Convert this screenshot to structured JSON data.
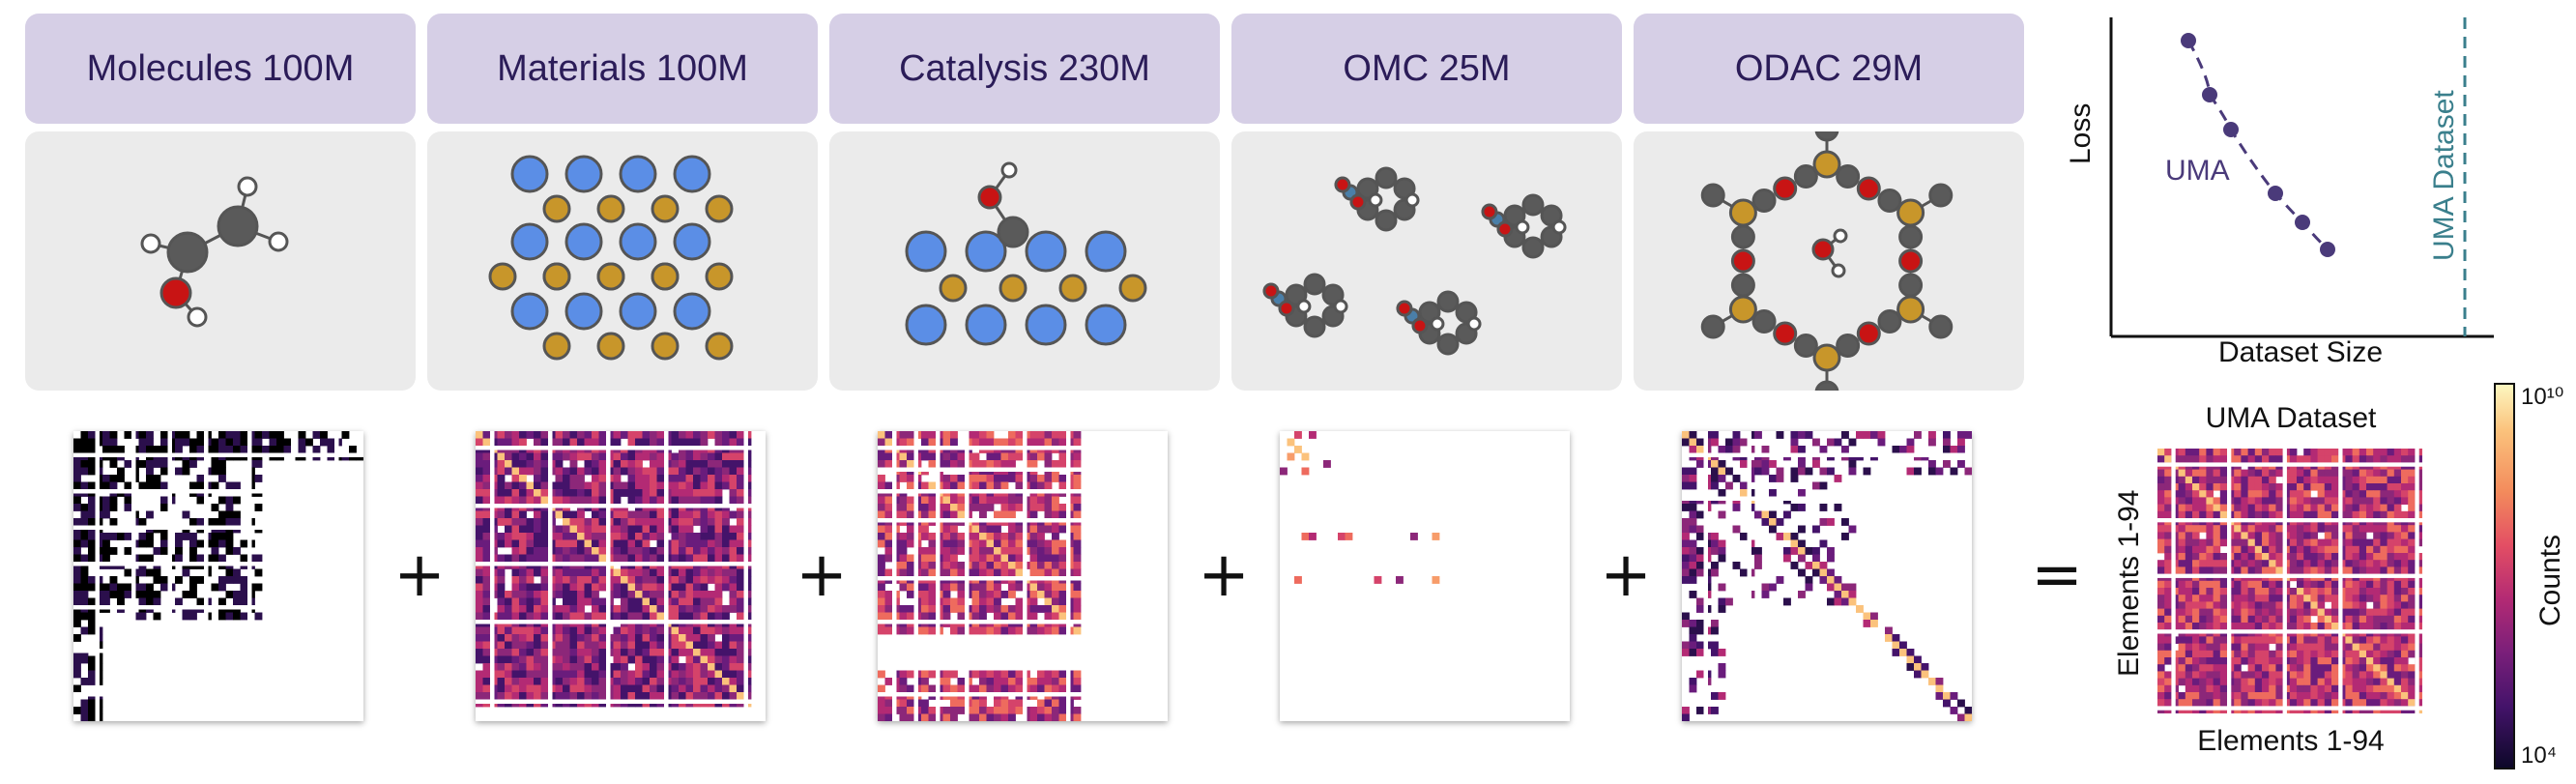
{
  "datasets": [
    {
      "label": "Molecules 100M"
    },
    {
      "label": "Materials 100M"
    },
    {
      "label": "Catalysis 230M"
    },
    {
      "label": "OMC 25M"
    },
    {
      "label": "ODAC 29M"
    }
  ],
  "operators": [
    "+",
    "+",
    "+",
    "+",
    "="
  ],
  "scaling_plot": {
    "ylabel": "Loss",
    "xlabel": "Dataset Size",
    "series_label": "UMA",
    "vline_label": "UMA Dataset",
    "series_color": "#4a3a7a",
    "vline_color": "#3a7f8c"
  },
  "combined": {
    "title": "UMA Dataset",
    "xlabel": "Elements 1-94",
    "ylabel": "Elements 1-94"
  },
  "colorbar": {
    "label": "Counts",
    "tick_top": "10¹⁰",
    "tick_bottom": "10⁴"
  },
  "colors": {
    "label_bg": "#d6cfe6",
    "label_text": "#2b1c58",
    "oxygen": "#c81414",
    "carbon": "#5a5a5a",
    "metal_blue": "#5b8ee6",
    "metal_gold": "#c8962a",
    "nitrogen": "#4a7fa8"
  }
}
